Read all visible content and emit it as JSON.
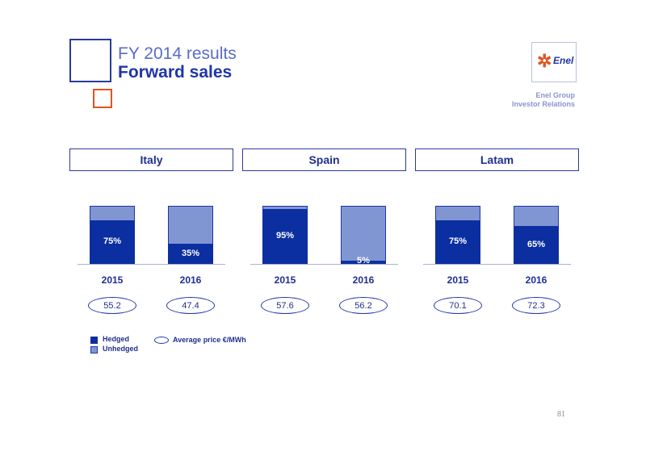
{
  "header": {
    "title_line1": "FY 2014 results",
    "title_line2": "Forward sales"
  },
  "logo": {
    "text": "Enel"
  },
  "company": {
    "line1": "Enel Group",
    "line2": "Investor Relations"
  },
  "colors": {
    "hedged": "#0b2fa0",
    "unhedged": "#8096d2",
    "accent_orange": "#e0531f",
    "border_blue": "#1f35a8"
  },
  "chart_data": {
    "type": "bar",
    "stacked": true,
    "regions": [
      {
        "name": "Italy",
        "bars": [
          {
            "year": "2015",
            "hedged": 75,
            "label": "75%",
            "avg_price": "55.2"
          },
          {
            "year": "2016",
            "hedged": 35,
            "label": "35%",
            "avg_price": "47.4"
          }
        ]
      },
      {
        "name": "Spain",
        "bars": [
          {
            "year": "2015",
            "hedged": 95,
            "label": "95%",
            "avg_price": "57.6"
          },
          {
            "year": "2016",
            "hedged": 5,
            "label": "5%",
            "avg_price": "56.2"
          }
        ]
      },
      {
        "name": "Latam",
        "bars": [
          {
            "year": "2015",
            "hedged": 75,
            "label": "75%",
            "avg_price": "70.1"
          },
          {
            "year": "2016",
            "hedged": 65,
            "label": "65%",
            "avg_price": "72.3"
          }
        ]
      }
    ],
    "ylim": [
      0,
      100
    ],
    "legend": {
      "hedged": "Hedged",
      "unhedged": "Unhedged",
      "avg_price": "Average price €/MWh"
    }
  },
  "footer": {
    "page_number": "81"
  }
}
